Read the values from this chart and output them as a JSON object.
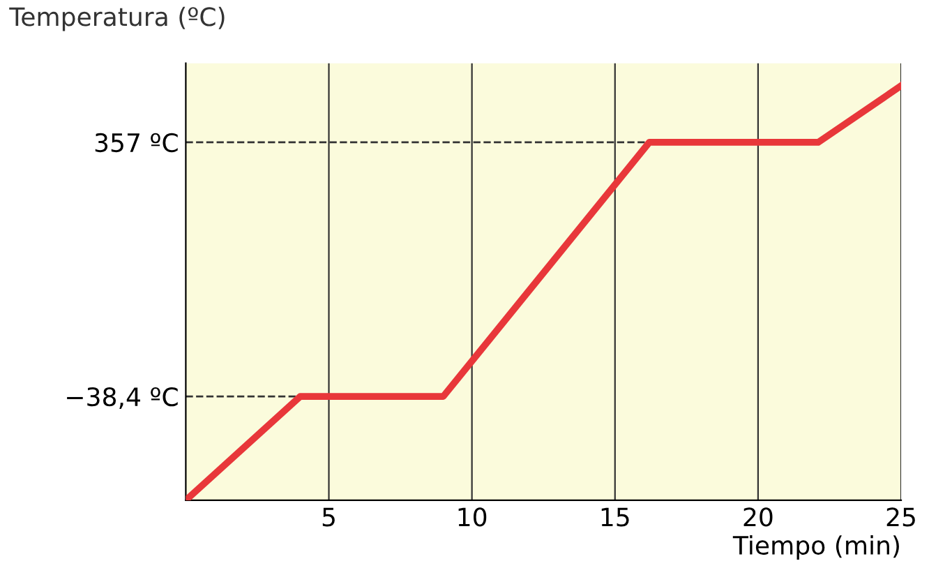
{
  "chart_data": {
    "type": "line",
    "xlabel": "Tiempo (min)",
    "ylabel": "Temperatura (ºC)",
    "x": [
      0,
      4,
      9,
      16.2,
      22.1,
      25
    ],
    "series": [
      {
        "color": "#e8373a",
        "values": [
          -200,
          -38.4,
          -38.4,
          357,
          357,
          445
        ]
      }
    ],
    "xlim": [
      0,
      25
    ],
    "xticks": [
      5,
      10,
      15,
      20,
      25
    ],
    "ylim": [
      -200,
      480
    ],
    "yticks": [
      {
        "value": -38.4,
        "label": "−38,4 ºC"
      },
      {
        "value": 357,
        "label": "357 ºC"
      }
    ],
    "ref_lines": [
      {
        "axis": "y",
        "value": -38.4,
        "line_style": "dashed",
        "color": "#333333"
      },
      {
        "axis": "y",
        "value": 357,
        "line_style": "dashed",
        "color": "#333333"
      }
    ],
    "grid": "x",
    "marker": "none",
    "line_style": "solid"
  }
}
